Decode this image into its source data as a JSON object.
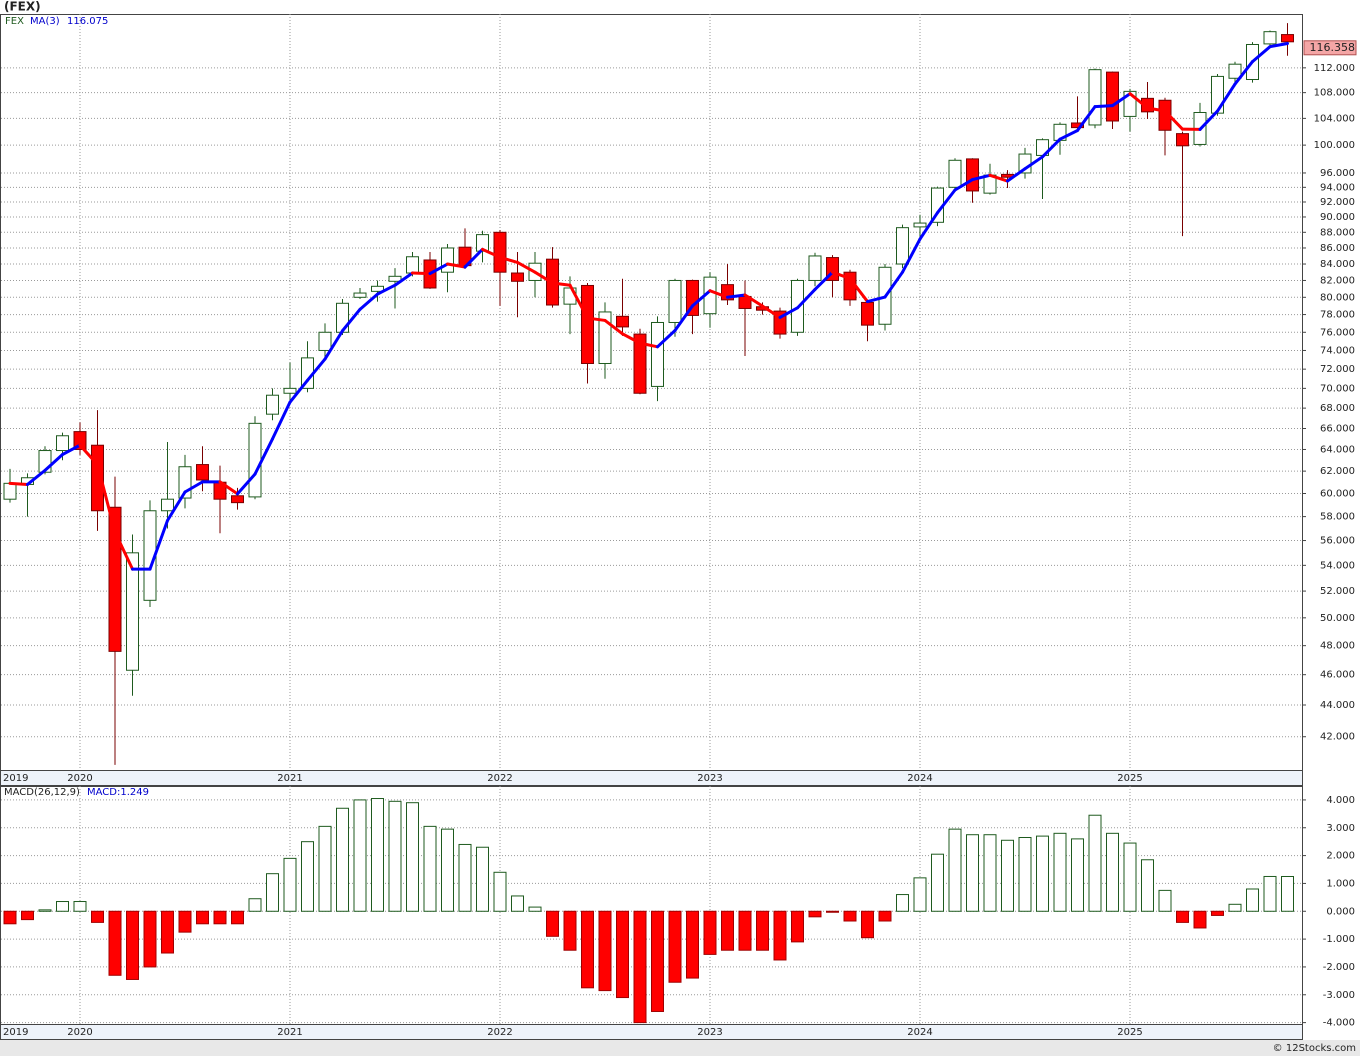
{
  "chart_data": [
    {
      "type": "candlestick",
      "title": "(FEX)",
      "log_scale": true,
      "grid": true,
      "categories": [
        "2019",
        null,
        null,
        null,
        "2020",
        null,
        null,
        null,
        null,
        null,
        null,
        null,
        null,
        null,
        null,
        null,
        "2021",
        null,
        null,
        null,
        null,
        null,
        null,
        null,
        null,
        null,
        null,
        null,
        "2022",
        null,
        null,
        null,
        null,
        null,
        null,
        null,
        null,
        null,
        null,
        null,
        "2023",
        null,
        null,
        null,
        null,
        null,
        null,
        null,
        null,
        null,
        null,
        null,
        "2024",
        null,
        null,
        null,
        null,
        null,
        null,
        null,
        null,
        null,
        null,
        null,
        "2025",
        null,
        null,
        null,
        null,
        null,
        null,
        null,
        null,
        null
      ],
      "ylim": [
        40,
        121.2
      ],
      "yticks": [
        {
          "value": 42,
          "label": "42.000"
        },
        {
          "value": 44,
          "label": "44.000"
        },
        {
          "value": 46,
          "label": "46.000"
        },
        {
          "value": 48,
          "label": "48.000"
        },
        {
          "value": 50,
          "label": "50.000"
        },
        {
          "value": 52,
          "label": "52.000"
        },
        {
          "value": 54,
          "label": "54.000"
        },
        {
          "value": 56,
          "label": "56.000"
        },
        {
          "value": 58,
          "label": "58.000"
        },
        {
          "value": 60,
          "label": "60.000"
        },
        {
          "value": 62,
          "label": "62.000"
        },
        {
          "value": 64,
          "label": "64.000"
        },
        {
          "value": 66,
          "label": "66.000"
        },
        {
          "value": 68,
          "label": "68.000"
        },
        {
          "value": 70,
          "label": "70.000"
        },
        {
          "value": 72,
          "label": "72.000"
        },
        {
          "value": 74,
          "label": "74.000"
        },
        {
          "value": 76,
          "label": "76.000"
        },
        {
          "value": 78,
          "label": "78.000"
        },
        {
          "value": 80,
          "label": "80.000"
        },
        {
          "value": 82,
          "label": "82.000"
        },
        {
          "value": 84,
          "label": "84.000"
        },
        {
          "value": 86,
          "label": "86.000"
        },
        {
          "value": 88,
          "label": "88.000"
        },
        {
          "value": 90,
          "label": "90.000"
        },
        {
          "value": 92,
          "label": "92.000"
        },
        {
          "value": 94,
          "label": "94.000"
        },
        {
          "value": 96,
          "label": "96.000"
        },
        {
          "value": 100,
          "label": "100.000"
        },
        {
          "value": 104,
          "label": "104.000"
        },
        {
          "value": 108,
          "label": "108.000"
        },
        {
          "value": 112,
          "label": "112.000"
        }
      ],
      "series": [
        {
          "name": "FEX",
          "up_color": "#ffffff",
          "down_color": "#ff0000",
          "edge_color": "#1e5a1e",
          "tag_color": "#f4a6a6",
          "open": [
            59.5,
            60.8,
            61.9,
            63.9,
            65.7,
            64.4,
            58.8,
            46.3,
            51.3,
            58.5,
            59.6,
            62.6,
            61.0,
            59.8,
            59.7,
            67.4,
            69.5,
            70.0,
            74,
            76,
            80,
            80.7,
            81.9,
            82.9,
            84.5,
            83,
            86.1,
            85.6,
            88,
            82.9,
            82,
            84.6,
            79.2,
            81.4,
            72.6,
            77.8,
            75.8,
            70.2,
            77.1,
            82,
            78.1,
            81.5,
            80.1,
            78.9,
            78.4,
            76,
            82,
            84.8,
            83,
            79.4,
            76.9,
            84,
            88.7,
            89.3,
            94,
            98,
            93.2,
            95.8,
            96,
            98.5,
            100.7,
            103.3,
            103,
            111.3,
            104.3,
            107.1,
            106.8,
            101.7,
            100.1,
            104.8,
            110.3,
            110.1,
            116,
            117.6
          ],
          "high": [
            62.2,
            61.8,
            64.3,
            65.6,
            66.6,
            67.8,
            61.5,
            56.5,
            59.4,
            64.7,
            63.5,
            64.3,
            62.5,
            60.5,
            67.2,
            70,
            72.7,
            75,
            77,
            79.8,
            81.1,
            82,
            83.5,
            85.5,
            85.5,
            86.5,
            88.5,
            88.2,
            88.3,
            85.5,
            85.5,
            86.1,
            82.5,
            81.7,
            79.4,
            82.2,
            76.4,
            77.8,
            82.2,
            82.1,
            83,
            84,
            82,
            79.4,
            78.8,
            82.2,
            85.4,
            85.1,
            83.3,
            79.6,
            84,
            89,
            90.3,
            94.1,
            98.1,
            98.1,
            97.3,
            96.4,
            99.6,
            101,
            103.4,
            107.4,
            111.9,
            111.4,
            108.6,
            109.7,
            107.2,
            102,
            106.4,
            111,
            113,
            116.3,
            118.3,
            119.6
          ],
          "low": [
            59.2,
            58,
            61.7,
            63,
            63.5,
            56.8,
            40.3,
            44.6,
            50.8,
            57,
            58.7,
            60.2,
            56.6,
            58.6,
            59.5,
            66.8,
            68.8,
            69.6,
            73.2,
            75.7,
            79.8,
            79.5,
            78.7,
            82.5,
            81,
            80.6,
            83.4,
            84.2,
            79,
            77.7,
            80,
            78.8,
            75.8,
            70.5,
            71,
            75.6,
            69.4,
            68.7,
            75.5,
            75.8,
            76.5,
            79.1,
            73.4,
            78,
            75.3,
            75.6,
            81.3,
            80,
            79,
            75,
            76.2,
            83.5,
            87.3,
            88.8,
            93.5,
            91.9,
            93,
            93.9,
            95.2,
            92.4,
            98.6,
            102,
            102.5,
            102.4,
            102,
            103.9,
            98.5,
            87.5,
            99.8,
            104.4,
            109,
            109.6,
            115.5,
            114
          ],
          "close": [
            60.9,
            61.4,
            63.9,
            65.3,
            64.0,
            58.5,
            47.6,
            55.0,
            58.5,
            59.5,
            62.4,
            61.2,
            59.5,
            59.2,
            66.5,
            69.3,
            70.0,
            73.2,
            76,
            79.3,
            80.5,
            81.3,
            82.5,
            84.9,
            81.1,
            86,
            83.8,
            87.7,
            83,
            81.9,
            84.1,
            79.1,
            81.1,
            72.6,
            78.3,
            76.6,
            69.5,
            77.1,
            82,
            77.9,
            82.4,
            79.7,
            78.7,
            78.5,
            75.8,
            82,
            85,
            82,
            79.7,
            76.8,
            83.6,
            88.6,
            89.2,
            93.9,
            97.8,
            93.5,
            95.7,
            95.4,
            98.7,
            100.8,
            103.1,
            102.6,
            111.7,
            103.6,
            108.2,
            105,
            102.2,
            99.9,
            104.9,
            110.6,
            112.6,
            115.9,
            118.1,
            116.358
          ]
        },
        {
          "name": "MA(3)",
          "up_color": "#0000ff",
          "down_color": "#ff0000",
          "values": [
            60.9,
            60.8,
            62.07,
            63.53,
            64.4,
            62.6,
            56.7,
            53.7,
            53.7,
            57.67,
            60.13,
            61.03,
            61.03,
            59.97,
            61.73,
            65.0,
            68.6,
            70.83,
            73.07,
            76.17,
            78.6,
            80.37,
            81.43,
            82.9,
            82.83,
            84.0,
            83.63,
            85.83,
            84.83,
            84.2,
            83.0,
            81.7,
            81.43,
            77.6,
            77.33,
            75.83,
            74.8,
            74.4,
            76.2,
            79.0,
            80.77,
            80.0,
            80.27,
            78.97,
            77.67,
            78.77,
            80.93,
            83.0,
            82.23,
            79.5,
            80.03,
            83.0,
            87.13,
            90.57,
            93.63,
            95.07,
            95.67,
            94.87,
            96.6,
            98.3,
            100.87,
            102.17,
            105.8,
            105.97,
            107.83,
            105.6,
            105.13,
            102.37,
            102.33,
            105.13,
            109.37,
            113.03,
            115.53,
            116.075
          ]
        }
      ]
    },
    {
      "type": "bar",
      "title": "MACD(26,12,9)",
      "grid": true,
      "categories": [
        "2019",
        null,
        null,
        null,
        "2020",
        null,
        null,
        null,
        null,
        null,
        null,
        null,
        null,
        null,
        null,
        null,
        "2021",
        null,
        null,
        null,
        null,
        null,
        null,
        null,
        null,
        null,
        null,
        null,
        "2022",
        null,
        null,
        null,
        null,
        null,
        null,
        null,
        null,
        null,
        null,
        null,
        "2023",
        null,
        null,
        null,
        null,
        null,
        null,
        null,
        null,
        null,
        null,
        null,
        "2024",
        null,
        null,
        null,
        null,
        null,
        null,
        null,
        null,
        null,
        null,
        null,
        "2025",
        null,
        null,
        null,
        null,
        null,
        null,
        null,
        null,
        null
      ],
      "ylim": [
        -4.05,
        4.5
      ],
      "yticks": [
        {
          "value": 4,
          "label": "4.000"
        },
        {
          "value": 3,
          "label": "3.000"
        },
        {
          "value": 2,
          "label": "2.000"
        },
        {
          "value": 1,
          "label": "1.000"
        },
        {
          "value": 0,
          "label": "0.000"
        },
        {
          "value": -1,
          "label": "-1.000"
        },
        {
          "value": -2,
          "label": "-2.000"
        },
        {
          "value": -3,
          "label": "-3.000"
        },
        {
          "value": -4,
          "label": "-4.000"
        }
      ],
      "series": [
        {
          "name": "MACD",
          "legend": "MACD:1.249",
          "up_color": "#ffffff",
          "down_color": "#ff0000",
          "edge_color": "#1e5a1e",
          "values": [
            -0.45,
            -0.3,
            0.05,
            0.35,
            0.35,
            -0.4,
            -2.3,
            -2.45,
            -2.0,
            -1.5,
            -0.75,
            -0.45,
            -0.45,
            -0.45,
            0.45,
            1.35,
            1.9,
            2.5,
            3.05,
            3.7,
            4.0,
            4.05,
            3.95,
            3.9,
            3.05,
            2.95,
            2.4,
            2.3,
            1.4,
            0.55,
            0.15,
            -0.9,
            -1.4,
            -2.75,
            -2.85,
            -3.1,
            -4.0,
            -3.6,
            -2.55,
            -2.4,
            -1.55,
            -1.4,
            -1.4,
            -1.4,
            -1.75,
            -1.1,
            -0.2,
            -0.03,
            -0.35,
            -0.95,
            -0.35,
            0.6,
            1.2,
            2.05,
            2.95,
            2.75,
            2.75,
            2.55,
            2.65,
            2.7,
            2.8,
            2.6,
            3.45,
            2.8,
            2.45,
            1.85,
            0.75,
            -0.4,
            -0.6,
            -0.15,
            0.25,
            0.8,
            1.25,
            1.249
          ]
        }
      ]
    }
  ],
  "footer": "© 12Stocks.com"
}
